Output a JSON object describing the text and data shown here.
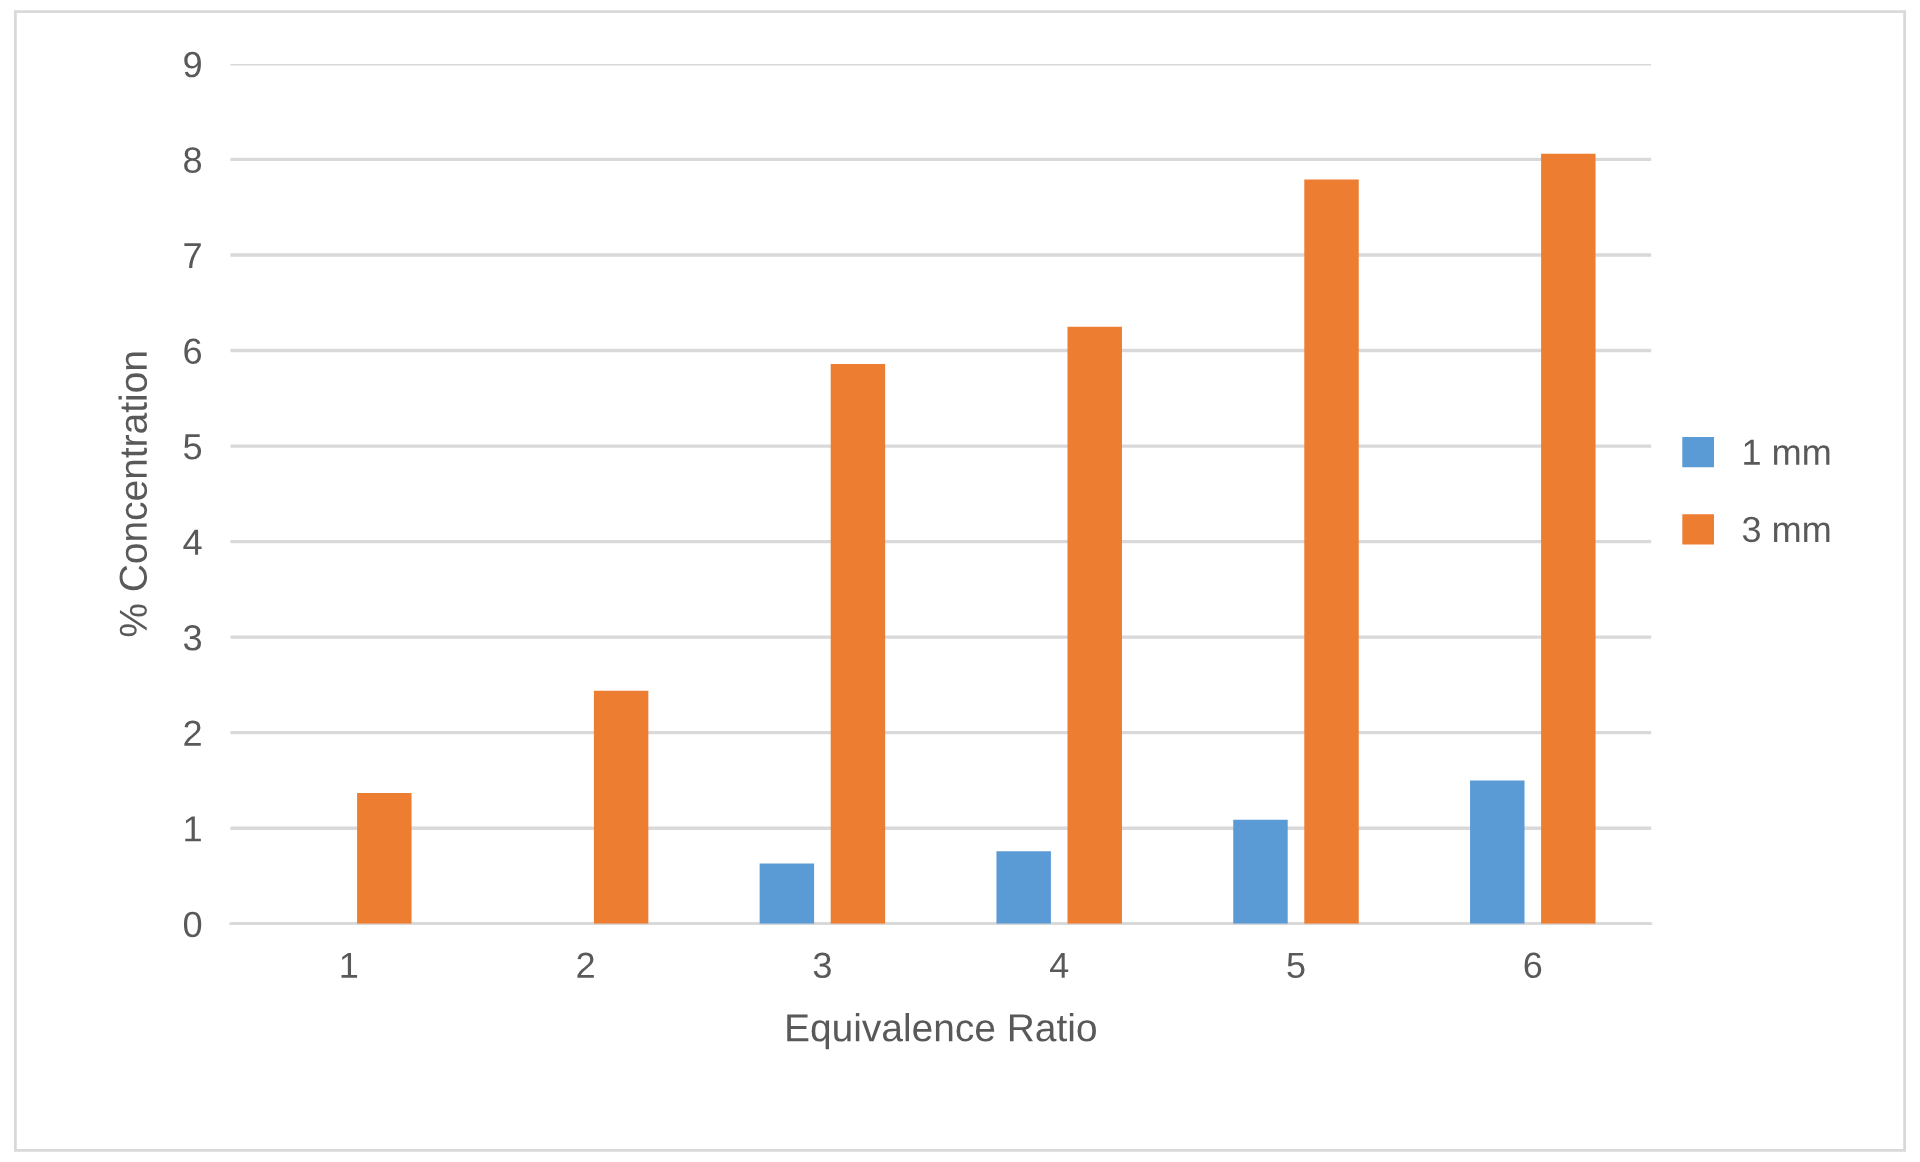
{
  "chart_data": {
    "type": "bar",
    "xlabel": "Equivalence Ratio",
    "ylabel": "% Concentration",
    "categories": [
      "1",
      "2",
      "3",
      "4",
      "5",
      "6"
    ],
    "series": [
      {
        "name": "1 mm",
        "color": "#5b9bd5",
        "values": [
          null,
          null,
          0.63,
          0.76,
          1.09,
          1.5
        ]
      },
      {
        "name": "3 mm",
        "color": "#ed7d31",
        "values": [
          1.37,
          2.44,
          5.86,
          6.25,
          7.79,
          8.06
        ]
      }
    ],
    "ylim": [
      0,
      9
    ],
    "yticks": [
      0,
      1,
      2,
      3,
      4,
      5,
      6,
      7,
      8,
      9
    ],
    "grid": "y",
    "legend": "right"
  }
}
